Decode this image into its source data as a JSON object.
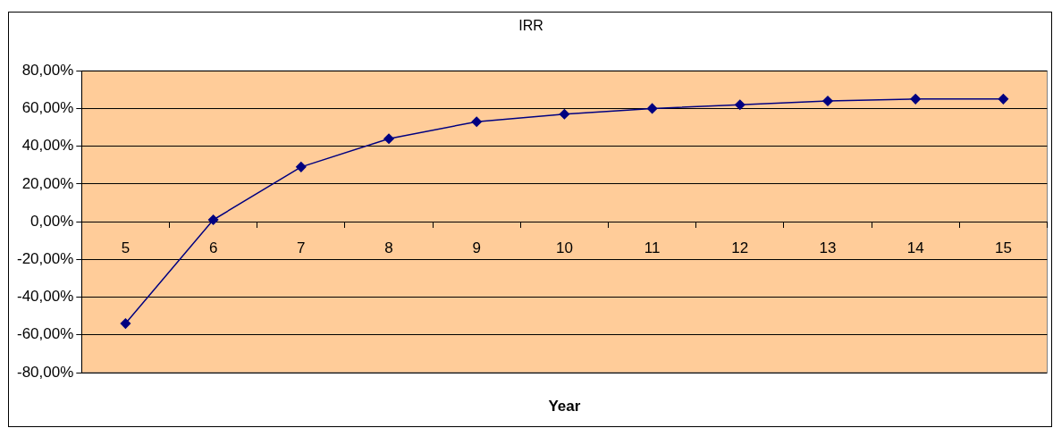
{
  "chart_data": {
    "type": "line",
    "title": "IRR",
    "xlabel": "Year",
    "categories": [
      "5",
      "6",
      "7",
      "8",
      "9",
      "10",
      "11",
      "12",
      "13",
      "14",
      "15"
    ],
    "series": [
      {
        "color": "#000080",
        "values": [
          -54,
          1,
          29,
          44,
          53,
          57,
          60,
          62,
          64,
          65,
          65
        ]
      }
    ],
    "ylim": [
      -80,
      80
    ],
    "yticks": [
      {
        "value": -80,
        "label": "-80,00%"
      },
      {
        "value": -60,
        "label": "-60,00%"
      },
      {
        "value": -40,
        "label": "-40,00%"
      },
      {
        "value": -20,
        "label": "-20,00%"
      },
      {
        "value": 0,
        "label": "0,00%"
      },
      {
        "value": 20,
        "label": "20,00%"
      },
      {
        "value": 40,
        "label": "40,00%"
      },
      {
        "value": 60,
        "label": "60,00%"
      },
      {
        "value": 80,
        "label": "80,00%"
      }
    ],
    "grid": "y",
    "legend": false,
    "marker": "diamond",
    "line_style": "solid"
  }
}
